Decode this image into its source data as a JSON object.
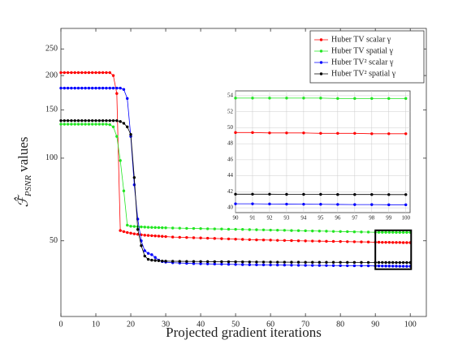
{
  "chart_data": {
    "type": "line",
    "xlabel": "Projected gradient iterations",
    "ylabel": {
      "symbol": "ℱ̂",
      "subscript": "PSNR",
      "text": "values"
    },
    "x": [
      0,
      1,
      2,
      3,
      4,
      5,
      6,
      7,
      8,
      9,
      10,
      11,
      12,
      13,
      14,
      15,
      16,
      17,
      18,
      19,
      20,
      21,
      22,
      23,
      24,
      25,
      26,
      27,
      28,
      29,
      30,
      32,
      34,
      36,
      38,
      40,
      42,
      44,
      46,
      48,
      50,
      52,
      54,
      56,
      58,
      60,
      62,
      64,
      66,
      68,
      70,
      72,
      74,
      76,
      78,
      80,
      82,
      84,
      86,
      88,
      90,
      91,
      92,
      93,
      94,
      95,
      96,
      97,
      98,
      99,
      100
    ],
    "xlim": [
      0,
      104.6
    ],
    "xticks": [
      0,
      10,
      20,
      30,
      40,
      50,
      60,
      70,
      80,
      90,
      100
    ],
    "ylim": [
      26.5,
      297
    ],
    "yticks": [
      50,
      100,
      150,
      200,
      250
    ],
    "log_y": true,
    "legend": "upper right",
    "series": [
      {
        "name": "Huber TV scalar γ",
        "color": "#ff0000",
        "values": [
          205,
          205,
          205,
          205,
          205,
          205,
          205,
          205,
          205,
          205,
          205,
          205,
          205,
          205,
          205,
          200,
          172,
          54.5,
          54,
          53.6,
          53.3,
          53,
          52.8,
          52.6,
          52.4,
          52.3,
          52.2,
          52.1,
          52,
          51.9,
          51.8,
          51.6,
          51.5,
          51.4,
          51.3,
          51.2,
          51.1,
          51.0,
          50.9,
          50.8,
          50.7,
          50.6,
          50.5,
          50.4,
          50.35,
          50.3,
          50.2,
          50.15,
          50.1,
          50.0,
          49.95,
          49.9,
          49.85,
          49.8,
          49.75,
          49.7,
          49.65,
          49.6,
          49.55,
          49.5,
          49.4,
          49.4,
          49.35,
          49.35,
          49.35,
          49.3,
          49.3,
          49.3,
          49.25,
          49.25,
          49.25
        ]
      },
      {
        "name": "Huber TV spatial γ",
        "color": "#22e622",
        "values": [
          133,
          133,
          133,
          133,
          133,
          133,
          133,
          133,
          133,
          133,
          133,
          133,
          133,
          133,
          132.5,
          130,
          120,
          98,
          76,
          57,
          56.5,
          56.4,
          56.3,
          56.2,
          56.1,
          56.0,
          55.95,
          55.9,
          55.85,
          55.8,
          55.75,
          55.65,
          55.6,
          55.5,
          55.45,
          55.4,
          55.3,
          55.25,
          55.2,
          55.1,
          55.05,
          55.0,
          54.9,
          54.85,
          54.8,
          54.7,
          54.65,
          54.6,
          54.5,
          54.45,
          54.4,
          54.3,
          54.25,
          54.2,
          54.1,
          54.05,
          54.0,
          53.9,
          53.85,
          53.8,
          53.7,
          53.7,
          53.7,
          53.7,
          53.7,
          53.7,
          53.65,
          53.65,
          53.65,
          53.65,
          53.65
        ]
      },
      {
        "name": "Huber TV² scalar γ",
        "color": "#0000ff",
        "values": [
          180,
          180,
          180,
          180,
          180,
          180,
          180,
          180,
          180,
          180,
          180,
          180,
          180,
          180,
          180,
          180,
          180,
          180,
          178,
          165,
          120,
          80,
          60,
          50,
          46,
          45,
          44.5,
          43.5,
          42.5,
          42,
          41.8,
          41.6,
          41.5,
          41.4,
          41.3,
          41.25,
          41.2,
          41.15,
          41.1,
          41.05,
          41.0,
          40.95,
          40.9,
          40.88,
          40.85,
          40.82,
          40.8,
          40.78,
          40.75,
          40.72,
          40.7,
          40.68,
          40.66,
          40.64,
          40.62,
          40.6,
          40.58,
          40.56,
          40.55,
          40.54,
          40.5,
          40.5,
          40.48,
          40.46,
          40.45,
          40.44,
          40.42,
          40.4,
          40.4,
          40.38,
          40.38
        ]
      },
      {
        "name": "Huber TV² spatial γ",
        "color": "#000000",
        "values": [
          137,
          137,
          137,
          137,
          137,
          137,
          137,
          137,
          137,
          137,
          137,
          137,
          137,
          137,
          137,
          137,
          137,
          136,
          134,
          130,
          122,
          85,
          55,
          48,
          44,
          42.8,
          42.5,
          42.4,
          42.3,
          42.2,
          42.15,
          42.1,
          42.08,
          42.06,
          42.04,
          42.02,
          42.0,
          41.98,
          41.96,
          41.94,
          41.92,
          41.9,
          41.88,
          41.86,
          41.84,
          41.82,
          41.8,
          41.8,
          41.78,
          41.78,
          41.76,
          41.76,
          41.75,
          41.74,
          41.74,
          41.73,
          41.72,
          41.72,
          41.71,
          41.7,
          41.7,
          41.7,
          41.7,
          41.68,
          41.68,
          41.68,
          41.66,
          41.66,
          41.66,
          41.65,
          41.65
        ]
      }
    ],
    "inset": {
      "xlim": [
        90,
        100.25
      ],
      "ylim": [
        39.4,
        54.6
      ],
      "xticks": [
        90,
        91,
        92,
        93,
        94,
        95,
        96,
        97,
        98,
        99,
        100
      ],
      "yticks": [
        40,
        42,
        44,
        46,
        48,
        50,
        52,
        54
      ]
    }
  }
}
